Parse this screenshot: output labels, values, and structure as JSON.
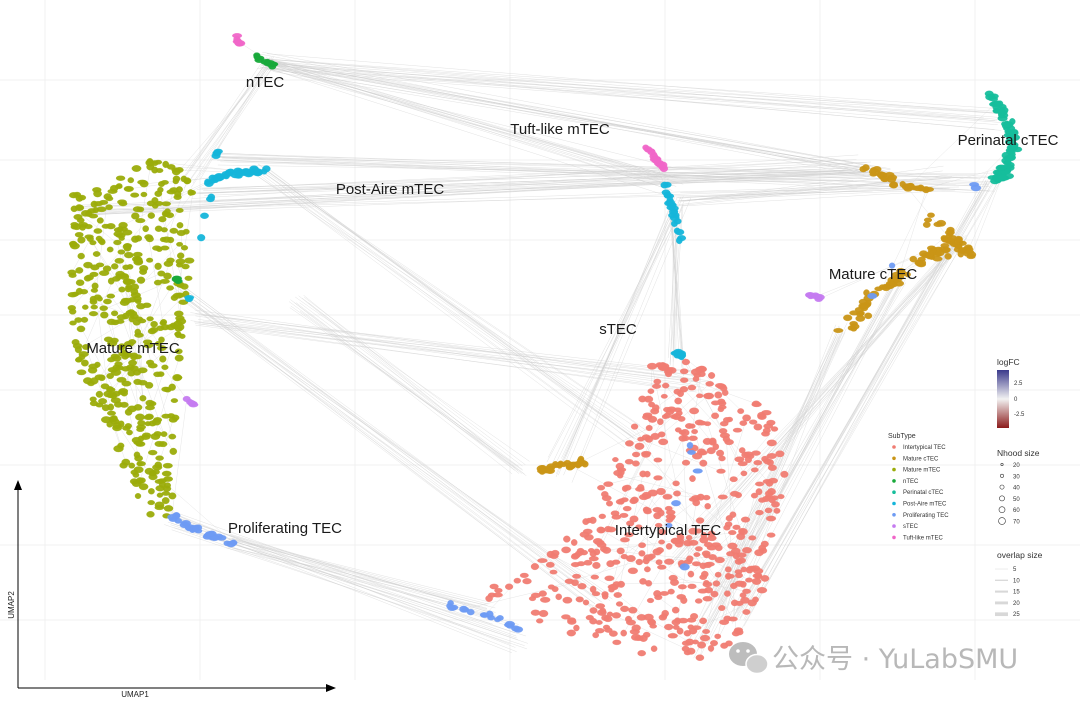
{
  "chart_data": {
    "type": "scatter",
    "subtype": "neighbourhood graph on UMAP embedding",
    "xlabel": "UMAP1",
    "ylabel": "UMAP2",
    "grid": true,
    "clusters": [
      {
        "name": "nTEC",
        "subtype": "nTEC"
      },
      {
        "name": "Tuft-like mTEC",
        "subtype": "Tuft-like mTEC"
      },
      {
        "name": "Post-Aire mTEC",
        "subtype": "Post-Aire mTEC"
      },
      {
        "name": "Perinatal cTEC",
        "subtype": "Perinatal cTEC"
      },
      {
        "name": "Mature mTEC",
        "subtype": "Mature mTEC"
      },
      {
        "name": "Mature cTEC",
        "subtype": "Mature cTEC"
      },
      {
        "name": "sTEC",
        "subtype": "sTEC"
      },
      {
        "name": "Proliferating TEC",
        "subtype": "Proliferating TEC"
      },
      {
        "name": "Intertypical TEC",
        "subtype": "Intertypical TEC"
      }
    ],
    "logfc_legend": {
      "title": "logFC",
      "ticks": [
        2.5,
        0.0,
        -2.5
      ],
      "colors": [
        "#3b3a8c",
        "#f2f2f2",
        "#8b1a1a"
      ]
    },
    "subtype_legend": {
      "title": "SubType",
      "entries": [
        {
          "label": "Intertypical TEC",
          "color": "#F07C72"
        },
        {
          "label": "Mature cTEC",
          "color": "#C99516"
        },
        {
          "label": "Mature mTEC",
          "color": "#9BAC0A"
        },
        {
          "label": "nTEC",
          "color": "#18A93A"
        },
        {
          "label": "Perinatal cTEC",
          "color": "#16BE9C"
        },
        {
          "label": "Post-Aire mTEC",
          "color": "#15B5DA"
        },
        {
          "label": "Proliferating TEC",
          "color": "#6E9BF3"
        },
        {
          "label": "sTEC",
          "color": "#C57BF0"
        },
        {
          "label": "Tuft-like mTEC",
          "color": "#F066C8"
        }
      ]
    },
    "nhood_size_legend": {
      "title": "Nhood size",
      "values": [
        20,
        30,
        40,
        50,
        60,
        70
      ]
    },
    "overlap_size_legend": {
      "title": "overlap size",
      "values": [
        5,
        10,
        15,
        20,
        25
      ]
    }
  },
  "watermark": {
    "text": "公众号 · YuLabSMU",
    "icon": "wechat-icon"
  }
}
